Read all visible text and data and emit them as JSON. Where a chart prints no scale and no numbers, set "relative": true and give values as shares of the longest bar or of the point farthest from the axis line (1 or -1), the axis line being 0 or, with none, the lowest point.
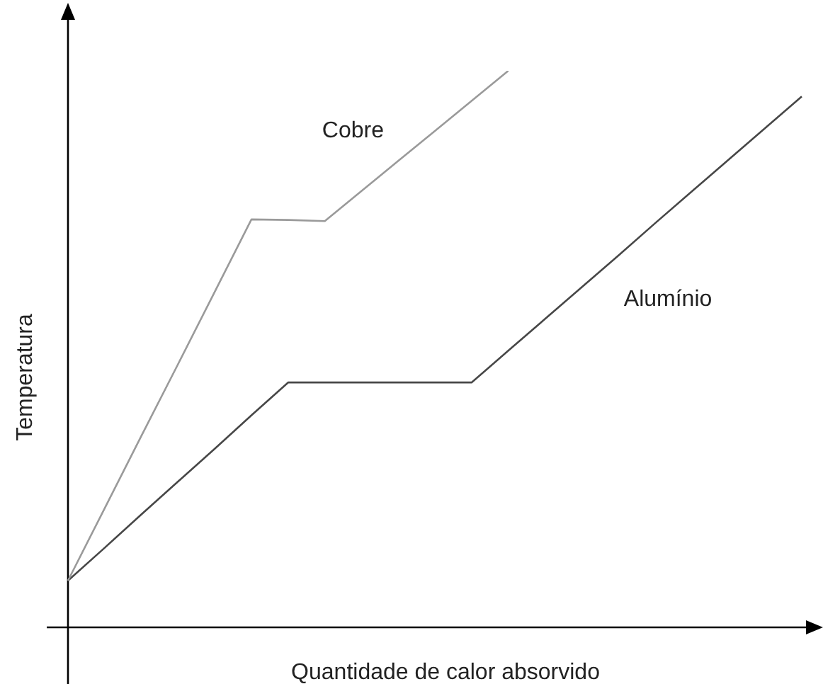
{
  "chart_data": {
    "type": "line",
    "xlabel": "Quantidade de calor absorvido",
    "ylabel": "Temperatura",
    "relative": true,
    "marker": "none",
    "line_style": "solid",
    "categories": [
      null,
      null,
      null,
      null,
      null,
      null,
      null,
      null,
      null,
      null,
      null,
      null,
      null,
      null,
      null,
      null,
      null,
      null,
      null,
      null,
      null
    ],
    "series": [
      {
        "name": "Cobre",
        "color": "#9a9a9a",
        "values": [
          0.084,
          0.214,
          0.344,
          0.473,
          0.603,
          0.733,
          0.732,
          0.73,
          0.784,
          0.838,
          0.892,
          0.946,
          1,
          null,
          null,
          null,
          null,
          null,
          null,
          null,
          null
        ]
      },
      {
        "name": "Alumínio",
        "color": "#474747",
        "values": [
          0.084,
          0.143,
          0.203,
          0.262,
          0.321,
          0.381,
          0.44,
          0.44,
          0.44,
          0.44,
          0.44,
          0.44,
          0.497,
          0.554,
          0.611,
          0.668,
          0.726,
          0.783,
          0.84,
          0.897,
          0.954
        ]
      }
    ]
  }
}
